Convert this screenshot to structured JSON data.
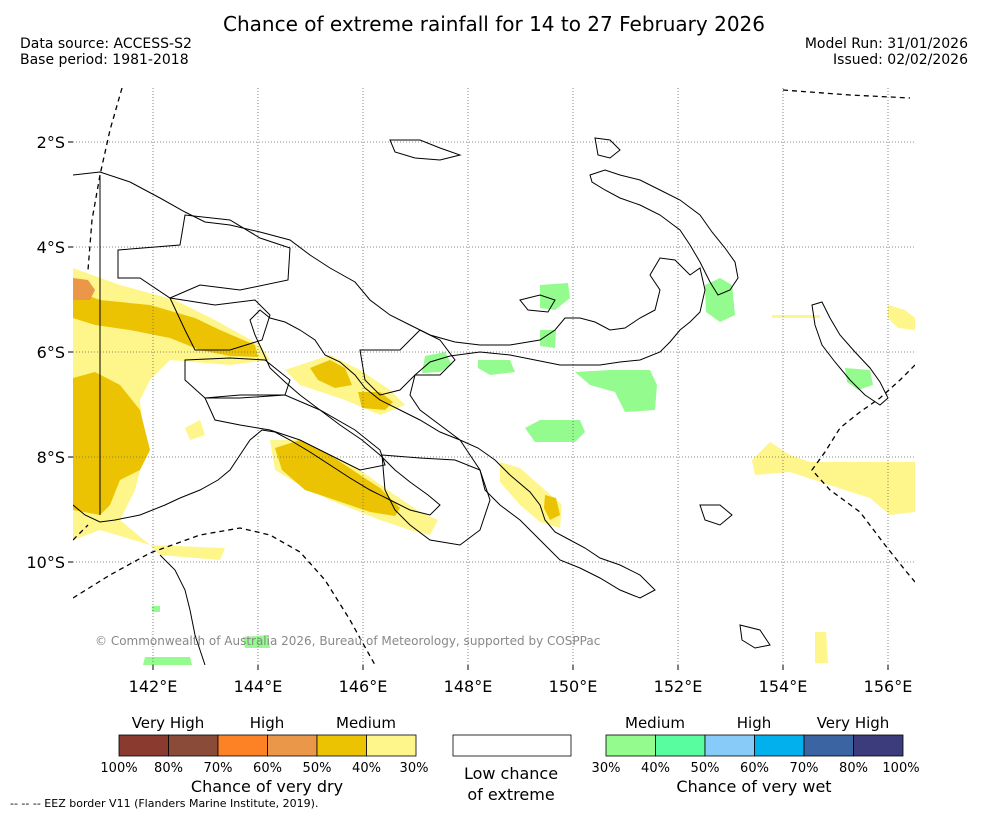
{
  "header": {
    "title": "Chance of extreme rainfall for 14 to 27 February 2026",
    "data_source": "Data source: ACCESS-S2",
    "base_period": "Base period: 1981-2018",
    "model_run": "Model Run: 31/01/2026",
    "issued": "Issued: 02/02/2026"
  },
  "map": {
    "lon_ticks": [
      "142°E",
      "144°E",
      "146°E",
      "148°E",
      "150°E",
      "152°E",
      "154°E",
      "156°E"
    ],
    "lat_ticks": [
      "2°S",
      "4°S",
      "6°S",
      "8°S",
      "10°S"
    ],
    "copyright": "© Commonwealth of Australia 2026, Bureau of Meteorology, supported by COSPPac",
    "colors": {
      "dry_medium_30": "#fef68a",
      "dry_medium_40": "#ebc302",
      "dry_high_50": "#ea974a",
      "wet_medium_30": "#94fb8f",
      "coast": "#000000"
    }
  },
  "legend": {
    "dry": {
      "heads": [
        "Very High",
        "High",
        "Medium"
      ],
      "colors": [
        "#8b3a30",
        "#8a4b39",
        "#fd8125",
        "#ea974a",
        "#ebc302",
        "#fef68a"
      ],
      "ticks": [
        "100%",
        "80%",
        "70%",
        "60%",
        "50%",
        "40%",
        "30%"
      ],
      "title": "Chance of very dry"
    },
    "low": {
      "title_line1": "Low chance",
      "title_line2": "of extreme"
    },
    "wet": {
      "heads": [
        "Medium",
        "High",
        "Very High"
      ],
      "colors": [
        "#94fb8f",
        "#57fd9e",
        "#88cbf9",
        "#01b0ec",
        "#3a64a2",
        "#3c3b7b"
      ],
      "ticks": [
        "30%",
        "40%",
        "50%",
        "60%",
        "70%",
        "80%",
        "100%"
      ],
      "title": "Chance of very wet"
    }
  },
  "footnote": "-- -- -- EEZ border V11 (Flanders Marine Institute, 2019)."
}
